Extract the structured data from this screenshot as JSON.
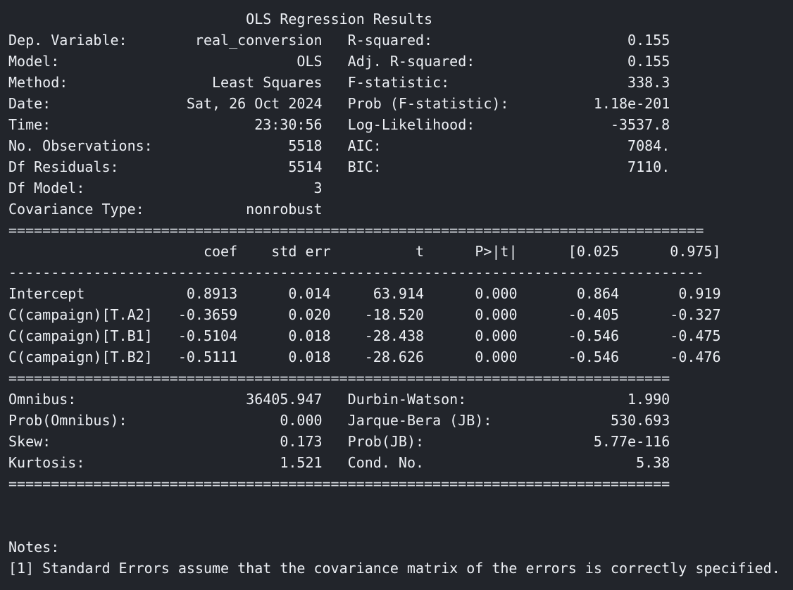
{
  "title": "OLS Regression Results",
  "rules": {
    "double_short": "==============================================================================",
    "double_long": "==================================================================================",
    "dash_long": "----------------------------------------------------------------------------------"
  },
  "summary": [
    {
      "label": "Dep. Variable:",
      "value": "real_conversion",
      "label2": "R-squared:",
      "value2": "0.155"
    },
    {
      "label": "Model:",
      "value": "OLS",
      "label2": "Adj. R-squared:",
      "value2": "0.155"
    },
    {
      "label": "Method:",
      "value": "Least Squares",
      "label2": "F-statistic:",
      "value2": "338.3"
    },
    {
      "label": "Date:",
      "value": "Sat, 26 Oct 2024",
      "label2": "Prob (F-statistic):",
      "value2": "1.18e-201"
    },
    {
      "label": "Time:",
      "value": "23:30:56",
      "label2": "Log-Likelihood:",
      "value2": "-3537.8"
    },
    {
      "label": "No. Observations:",
      "value": "5518",
      "label2": "AIC:",
      "value2": "7084."
    },
    {
      "label": "Df Residuals:",
      "value": "5514",
      "label2": "BIC:",
      "value2": "7110."
    },
    {
      "label": "Df Model:",
      "value": "3",
      "label2": "",
      "value2": ""
    },
    {
      "label": "Covariance Type:",
      "value": "nonrobust",
      "label2": "",
      "value2": ""
    }
  ],
  "coef_table": {
    "headers": [
      "coef",
      "std err",
      "t",
      "P>|t|",
      "[0.025",
      "0.975]"
    ],
    "rows": [
      {
        "name": "Intercept",
        "cells": [
          "0.8913",
          "0.014",
          "63.914",
          "0.000",
          "0.864",
          "0.919"
        ]
      },
      {
        "name": "C(campaign)[T.A2]",
        "cells": [
          "-0.3659",
          "0.020",
          "-18.520",
          "0.000",
          "-0.405",
          "-0.327"
        ]
      },
      {
        "name": "C(campaign)[T.B1]",
        "cells": [
          "-0.5104",
          "0.018",
          "-28.438",
          "0.000",
          "-0.546",
          "-0.475"
        ]
      },
      {
        "name": "C(campaign)[T.B2]",
        "cells": [
          "-0.5111",
          "0.018",
          "-28.626",
          "0.000",
          "-0.546",
          "-0.476"
        ]
      }
    ]
  },
  "diagnostics": [
    {
      "label": "Omnibus:",
      "value": "36405.947",
      "label2": "Durbin-Watson:",
      "value2": "1.990"
    },
    {
      "label": "Prob(Omnibus):",
      "value": "0.000",
      "label2": "Jarque-Bera (JB):",
      "value2": "530.693"
    },
    {
      "label": "Skew:",
      "value": "0.173",
      "label2": "Prob(JB):",
      "value2": "5.77e-116"
    },
    {
      "label": "Kurtosis:",
      "value": "1.521",
      "label2": "Cond. No.",
      "value2": "5.38"
    }
  ],
  "notes": {
    "heading": "Notes:",
    "lines": [
      "[1] Standard Errors assume that the covariance matrix of the errors is correctly specified."
    ]
  }
}
